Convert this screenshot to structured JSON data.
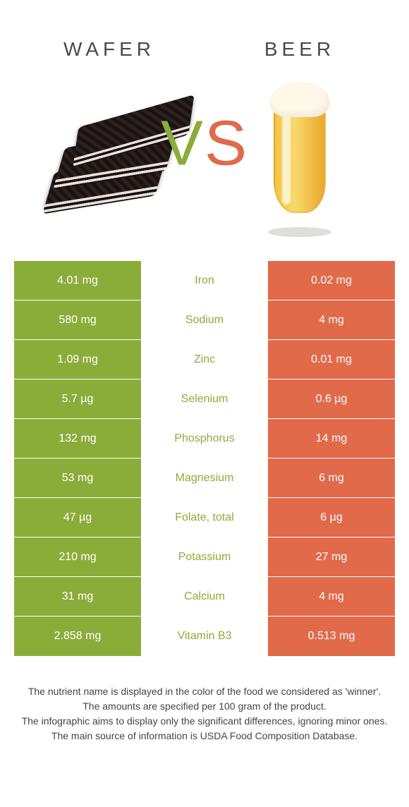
{
  "colors": {
    "left": "#8aad3a",
    "right": "#e06a4a",
    "mid_default": "#777777"
  },
  "header": {
    "left_title": "Wafer",
    "right_title": "Beer",
    "vs_v": "V",
    "vs_s": "S"
  },
  "rows": [
    {
      "nutrient": "Iron",
      "left": "4.01 mg",
      "right": "0.02 mg",
      "winner": "left"
    },
    {
      "nutrient": "Sodium",
      "left": "580 mg",
      "right": "4 mg",
      "winner": "left"
    },
    {
      "nutrient": "Zinc",
      "left": "1.09 mg",
      "right": "0.01 mg",
      "winner": "left"
    },
    {
      "nutrient": "Selenium",
      "left": "5.7 µg",
      "right": "0.6 µg",
      "winner": "left"
    },
    {
      "nutrient": "Phosphorus",
      "left": "132 mg",
      "right": "14 mg",
      "winner": "left"
    },
    {
      "nutrient": "Magnesium",
      "left": "53 mg",
      "right": "6 mg",
      "winner": "left"
    },
    {
      "nutrient": "Folate, total",
      "left": "47 µg",
      "right": "6 µg",
      "winner": "left"
    },
    {
      "nutrient": "Potassium",
      "left": "210 mg",
      "right": "27 mg",
      "winner": "left"
    },
    {
      "nutrient": "Calcium",
      "left": "31 mg",
      "right": "4 mg",
      "winner": "left"
    },
    {
      "nutrient": "Vitamin B3",
      "left": "2.858 mg",
      "right": "0.513 mg",
      "winner": "left"
    }
  ],
  "footer": {
    "line1": "The nutrient name is displayed in the color of the food we considered as 'winner'.",
    "line2": "The amounts are specified per 100 gram of the product.",
    "line3": "The infographic aims to display only the significant differences, ignoring minor ones.",
    "line4": "The main source of information is USDA Food Composition Database."
  }
}
